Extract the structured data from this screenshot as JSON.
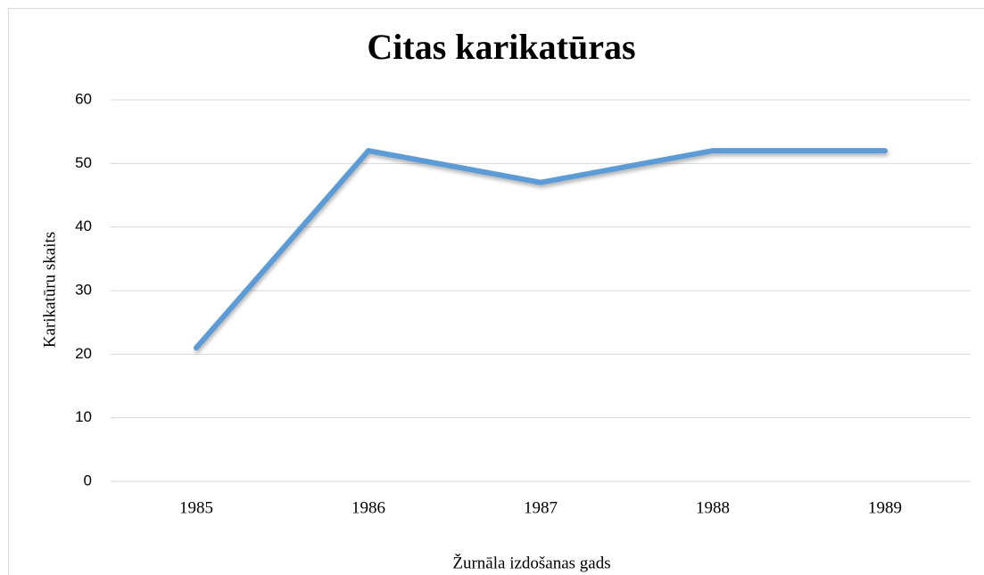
{
  "chart_data": {
    "type": "line",
    "title": "Citas karikatūras",
    "x_label": "Žurnāla izdošanas gads",
    "y_label": "Karikatūru skaits",
    "categories": [
      "1985",
      "1986",
      "1987",
      "1988",
      "1989"
    ],
    "series": [
      {
        "name": "Citas karikatūras",
        "color": "#5b9bd5",
        "values": [
          21,
          52,
          47,
          52,
          52
        ]
      }
    ],
    "ylim": [
      0,
      60
    ],
    "yticks": [
      0,
      10,
      20,
      30,
      40,
      50,
      60
    ],
    "grid": true
  }
}
